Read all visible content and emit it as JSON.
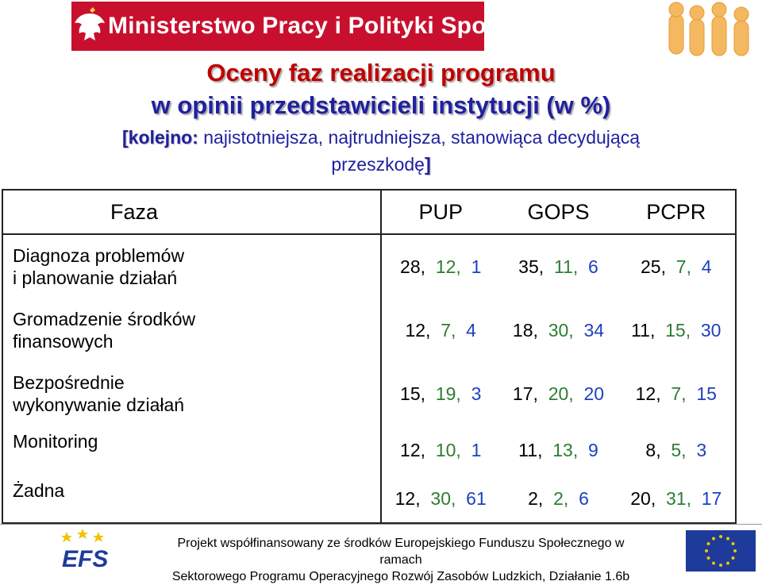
{
  "header": {
    "ministry": "Ministerstwo Pracy i Polityki Społecznej",
    "eagle_icon": "polish-eagle-emblem",
    "people_logo_icon": "people-figures-logo"
  },
  "title": {
    "line1": "Oceny faz realizacji programu",
    "line2": "w opinii przedstawicieli instytucji (w %)",
    "sub_prefix": "[kolejno:",
    "sub_text1": " najistotniejsza, najtrudniejsza, stanowiąca decydującą",
    "sub_text2": "przeszkodę",
    "sub_suffix": "]"
  },
  "table": {
    "headers": [
      "Faza",
      "PUP",
      "GOPS",
      "PCPR"
    ],
    "rows": [
      {
        "label1": "Diagnoza problemów",
        "label2": "i planowanie działań",
        "pup": [
          "28",
          "12",
          "1"
        ],
        "gops": [
          "35",
          "11",
          "6"
        ],
        "pcpr": [
          "25",
          "7",
          "4"
        ]
      },
      {
        "label1": "Gromadzenie środków",
        "label2": "finansowych",
        "pup": [
          "12",
          "7",
          "4"
        ],
        "gops": [
          "18",
          "30",
          "34"
        ],
        "pcpr": [
          "11",
          "15",
          "30"
        ]
      },
      {
        "label1": "Bezpośrednie",
        "label2": "wykonywanie działań",
        "pup": [
          "15",
          "19",
          "3"
        ],
        "gops": [
          "17",
          "20",
          "20"
        ],
        "pcpr": [
          "12",
          "7",
          "15"
        ]
      },
      {
        "label1": "Monitoring",
        "label2": "",
        "pup": [
          "12",
          "10",
          "1"
        ],
        "gops": [
          "11",
          "13",
          "9"
        ],
        "pcpr": [
          "8",
          "5",
          "3"
        ]
      },
      {
        "label1": "Żadna",
        "label2": "",
        "pup": [
          "12",
          "30",
          "61"
        ],
        "gops": [
          "2",
          "2",
          "6"
        ],
        "pcpr": [
          "20",
          "31",
          "17"
        ]
      }
    ],
    "separator": ","
  },
  "footer": {
    "efs_label": "EFS",
    "line1": "Projekt współfinansowany ze środków Europejskiego Funduszu Społecznego w ramach",
    "line2": "Sektorowego Programu Operacyjnego Rozwój Zasobów Ludzkich, Działanie 1.6b",
    "eu_flag_icon": "eu-flag-icon"
  },
  "colors": {
    "banner": "#c8102e",
    "title_red": "#c00000",
    "title_blue": "#2020a0",
    "green": "#2e7d32",
    "blue": "#1e40c0"
  }
}
